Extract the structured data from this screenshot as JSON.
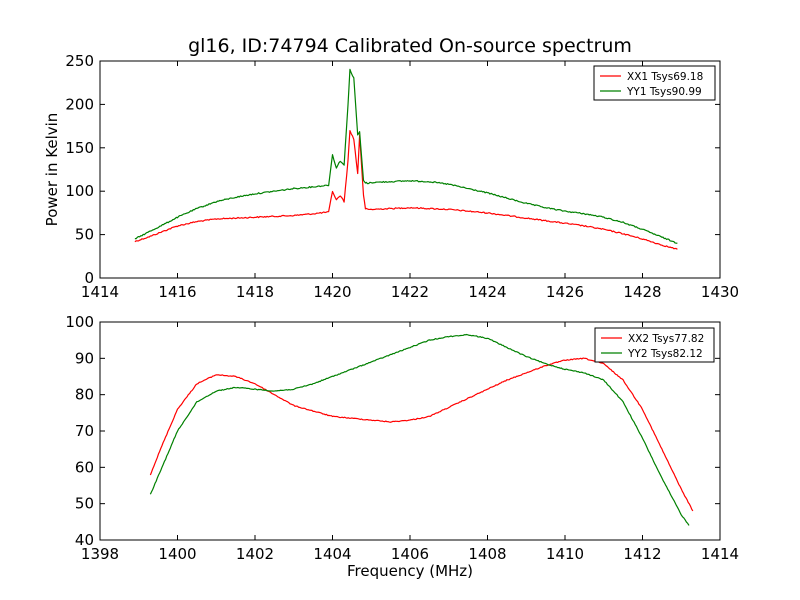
{
  "figure": {
    "title": "gl16, ID:74794 Calibrated On-source spectrum"
  },
  "chart_data": [
    {
      "type": "line",
      "title": "gl16, ID:74794 Calibrated On-source spectrum",
      "xlabel": "",
      "ylabel": "Power in Kelvin",
      "xlim": [
        1414,
        1430
      ],
      "ylim": [
        0,
        250
      ],
      "xticks": [
        1414,
        1416,
        1418,
        1420,
        1422,
        1424,
        1426,
        1428,
        1430
      ],
      "yticks": [
        0,
        50,
        100,
        150,
        200,
        250
      ],
      "grid": false,
      "legend_position": "top-right",
      "series": [
        {
          "name": "XX1 Tsys69.18",
          "color": "#ff0000",
          "x": [
            1414.9,
            1415.3,
            1415.7,
            1416.0,
            1416.5,
            1417.0,
            1417.5,
            1418.0,
            1418.5,
            1419.0,
            1419.5,
            1419.9,
            1420.0,
            1420.1,
            1420.2,
            1420.3,
            1420.4,
            1420.45,
            1420.55,
            1420.65,
            1420.7,
            1420.75,
            1420.8,
            1420.85,
            1420.9,
            1421.0,
            1421.5,
            1422.0,
            1422.5,
            1423.0,
            1423.5,
            1424.0,
            1424.5,
            1425.0,
            1425.5,
            1426.0,
            1426.5,
            1427.0,
            1427.5,
            1428.0,
            1428.5,
            1428.9
          ],
          "y": [
            42,
            48,
            55,
            60,
            65,
            68,
            69,
            70,
            71,
            72,
            74,
            76,
            100,
            90,
            95,
            88,
            135,
            170,
            160,
            120,
            165,
            130,
            95,
            80,
            79,
            79,
            80,
            81,
            80,
            79,
            77,
            75,
            72,
            69,
            66,
            63,
            60,
            56,
            51,
            45,
            38,
            33
          ]
        },
        {
          "name": "YY1 Tsys90.99",
          "color": "#008000",
          "x": [
            1414.9,
            1415.3,
            1415.7,
            1416.0,
            1416.5,
            1417.0,
            1417.5,
            1418.0,
            1418.5,
            1419.0,
            1419.5,
            1419.9,
            1420.0,
            1420.1,
            1420.2,
            1420.3,
            1420.4,
            1420.45,
            1420.55,
            1420.65,
            1420.7,
            1420.75,
            1420.8,
            1420.85,
            1420.9,
            1421.0,
            1421.5,
            1422.0,
            1422.5,
            1423.0,
            1423.5,
            1424.0,
            1424.5,
            1425.0,
            1425.5,
            1426.0,
            1426.5,
            1427.0,
            1427.5,
            1428.0,
            1428.5,
            1428.9
          ],
          "y": [
            45,
            54,
            63,
            70,
            80,
            88,
            93,
            97,
            100,
            103,
            105,
            107,
            142,
            127,
            135,
            130,
            200,
            240,
            230,
            165,
            168,
            140,
            112,
            110,
            109,
            110,
            111,
            112,
            111,
            108,
            103,
            98,
            92,
            86,
            81,
            77,
            74,
            70,
            64,
            56,
            47,
            40
          ]
        }
      ]
    },
    {
      "type": "line",
      "title": "",
      "xlabel": "Frequency (MHz)",
      "ylabel": "",
      "xlim": [
        1398,
        1414
      ],
      "ylim": [
        40,
        100
      ],
      "xticks": [
        1398,
        1400,
        1402,
        1404,
        1406,
        1408,
        1410,
        1412,
        1414
      ],
      "yticks": [
        40,
        50,
        60,
        70,
        80,
        90,
        100
      ],
      "grid": false,
      "legend_position": "top-right",
      "series": [
        {
          "name": "XX2 Tsys77.82",
          "color": "#ff0000",
          "x": [
            1399.3,
            1399.6,
            1400.0,
            1400.5,
            1401.0,
            1401.5,
            1402.0,
            1402.5,
            1403.0,
            1403.5,
            1404.0,
            1404.5,
            1405.0,
            1405.5,
            1406.0,
            1406.5,
            1407.0,
            1407.5,
            1408.0,
            1408.5,
            1409.0,
            1409.5,
            1410.0,
            1410.5,
            1411.0,
            1411.5,
            1412.0,
            1412.5,
            1413.0,
            1413.3
          ],
          "y": [
            58,
            66,
            76,
            83,
            85.5,
            85,
            83,
            80,
            77,
            75.5,
            74,
            73.5,
            73,
            72.5,
            73,
            74,
            76.5,
            79,
            81.5,
            84,
            86,
            88,
            89.5,
            90,
            88.5,
            84,
            76,
            65,
            54,
            48
          ]
        },
        {
          "name": "YY2 Tsys82.12",
          "color": "#008000",
          "x": [
            1399.3,
            1399.6,
            1400.0,
            1400.5,
            1401.0,
            1401.5,
            1402.0,
            1402.5,
            1403.0,
            1403.5,
            1404.0,
            1404.5,
            1405.0,
            1405.5,
            1406.0,
            1406.5,
            1407.0,
            1407.5,
            1408.0,
            1408.5,
            1409.0,
            1409.5,
            1410.0,
            1410.5,
            1411.0,
            1411.5,
            1412.0,
            1412.5,
            1413.0,
            1413.2
          ],
          "y": [
            52.5,
            60,
            70,
            78,
            81,
            82,
            81.5,
            81,
            81.5,
            83,
            85,
            87,
            89,
            91,
            93,
            95,
            96,
            96.5,
            95.5,
            93,
            90.5,
            88.5,
            87,
            86,
            84,
            78,
            68,
            57,
            47,
            44
          ]
        }
      ]
    }
  ]
}
